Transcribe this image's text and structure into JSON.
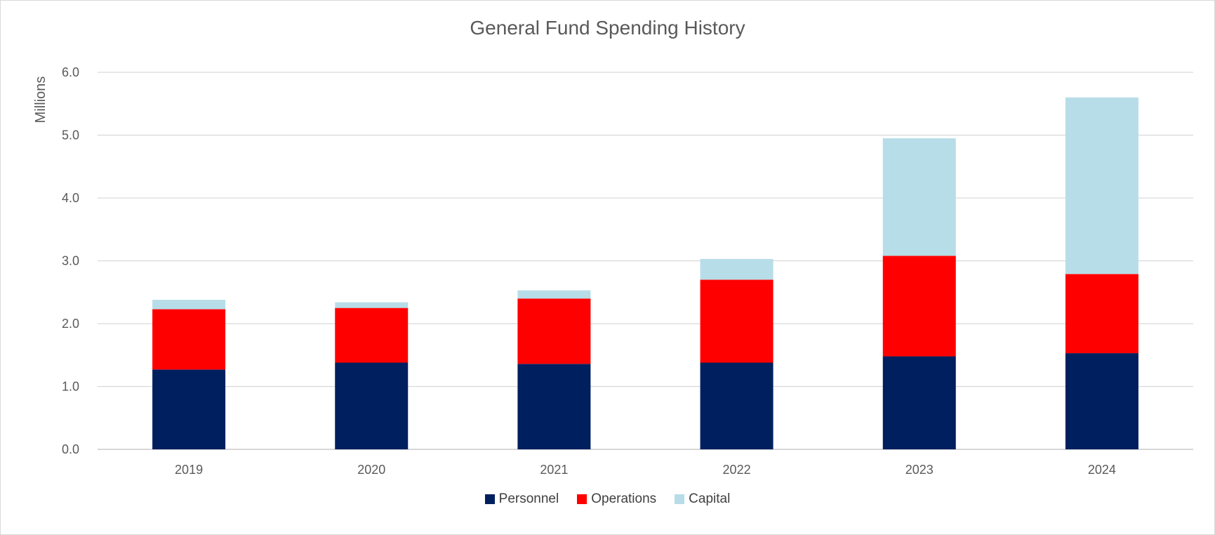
{
  "chart_data": {
    "type": "bar",
    "stacked": true,
    "title": "General Fund Spending History",
    "ylabel": "Millions",
    "xlabel": "",
    "ylim": [
      0,
      6
    ],
    "yticks": [
      "0.0",
      "1.0",
      "2.0",
      "3.0",
      "4.0",
      "5.0",
      "6.0"
    ],
    "grid": true,
    "legend_position": "bottom",
    "categories": [
      "2019",
      "2020",
      "2021",
      "2022",
      "2023",
      "2024"
    ],
    "series": [
      {
        "name": "Personnel",
        "color": "#001f5f",
        "values": [
          1.27,
          1.38,
          1.36,
          1.38,
          1.48,
          1.53
        ]
      },
      {
        "name": "Operations",
        "color": "#ff0000",
        "values": [
          0.96,
          0.87,
          1.04,
          1.32,
          1.6,
          1.26
        ]
      },
      {
        "name": "Capital",
        "color": "#b7dde8",
        "values": [
          0.15,
          0.09,
          0.13,
          0.33,
          1.87,
          2.81
        ]
      }
    ]
  }
}
